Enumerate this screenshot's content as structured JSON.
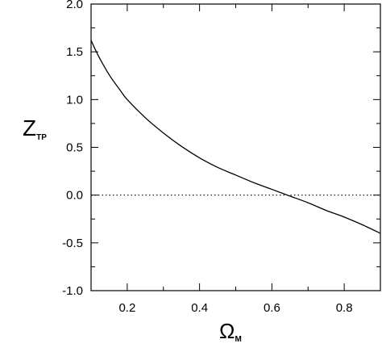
{
  "chart_data": {
    "type": "line",
    "title": "",
    "xlabel": "Ω",
    "xlabel_subscript": "M",
    "ylabel": "Z",
    "ylabel_subscript": "TP",
    "xlim": [
      0.1,
      0.9
    ],
    "ylim": [
      -1.0,
      2.0
    ],
    "xticks_major": [
      0.2,
      0.4,
      0.6,
      0.8
    ],
    "xtick_labels": [
      "0.2",
      "0.4",
      "0.6",
      "0.8"
    ],
    "yticks_major": [
      -1.0,
      -0.5,
      0.0,
      0.5,
      1.0,
      1.5,
      2.0
    ],
    "ytick_labels": [
      "-1.0",
      "-0.5",
      "0.0",
      "0.5",
      "1.0",
      "1.5",
      "2.0"
    ],
    "grid": false,
    "legend": "none",
    "colors": {
      "line": "#000000",
      "axes": "#000000",
      "reference": "#000000"
    },
    "series": [
      {
        "style": "solid",
        "x": [
          0.1,
          0.12,
          0.15,
          0.18,
          0.2,
          0.25,
          0.3,
          0.35,
          0.4,
          0.45,
          0.5,
          0.55,
          0.6,
          0.65,
          0.7,
          0.75,
          0.8,
          0.85,
          0.9
        ],
        "y": [
          1.62,
          1.46,
          1.26,
          1.1,
          1.0,
          0.81,
          0.65,
          0.51,
          0.39,
          0.29,
          0.21,
          0.13,
          0.06,
          -0.01,
          -0.08,
          -0.16,
          -0.23,
          -0.31,
          -0.4
        ]
      }
    ],
    "reference_lines": [
      {
        "orientation": "horizontal",
        "y": 0.0,
        "style": "dotted"
      }
    ]
  }
}
